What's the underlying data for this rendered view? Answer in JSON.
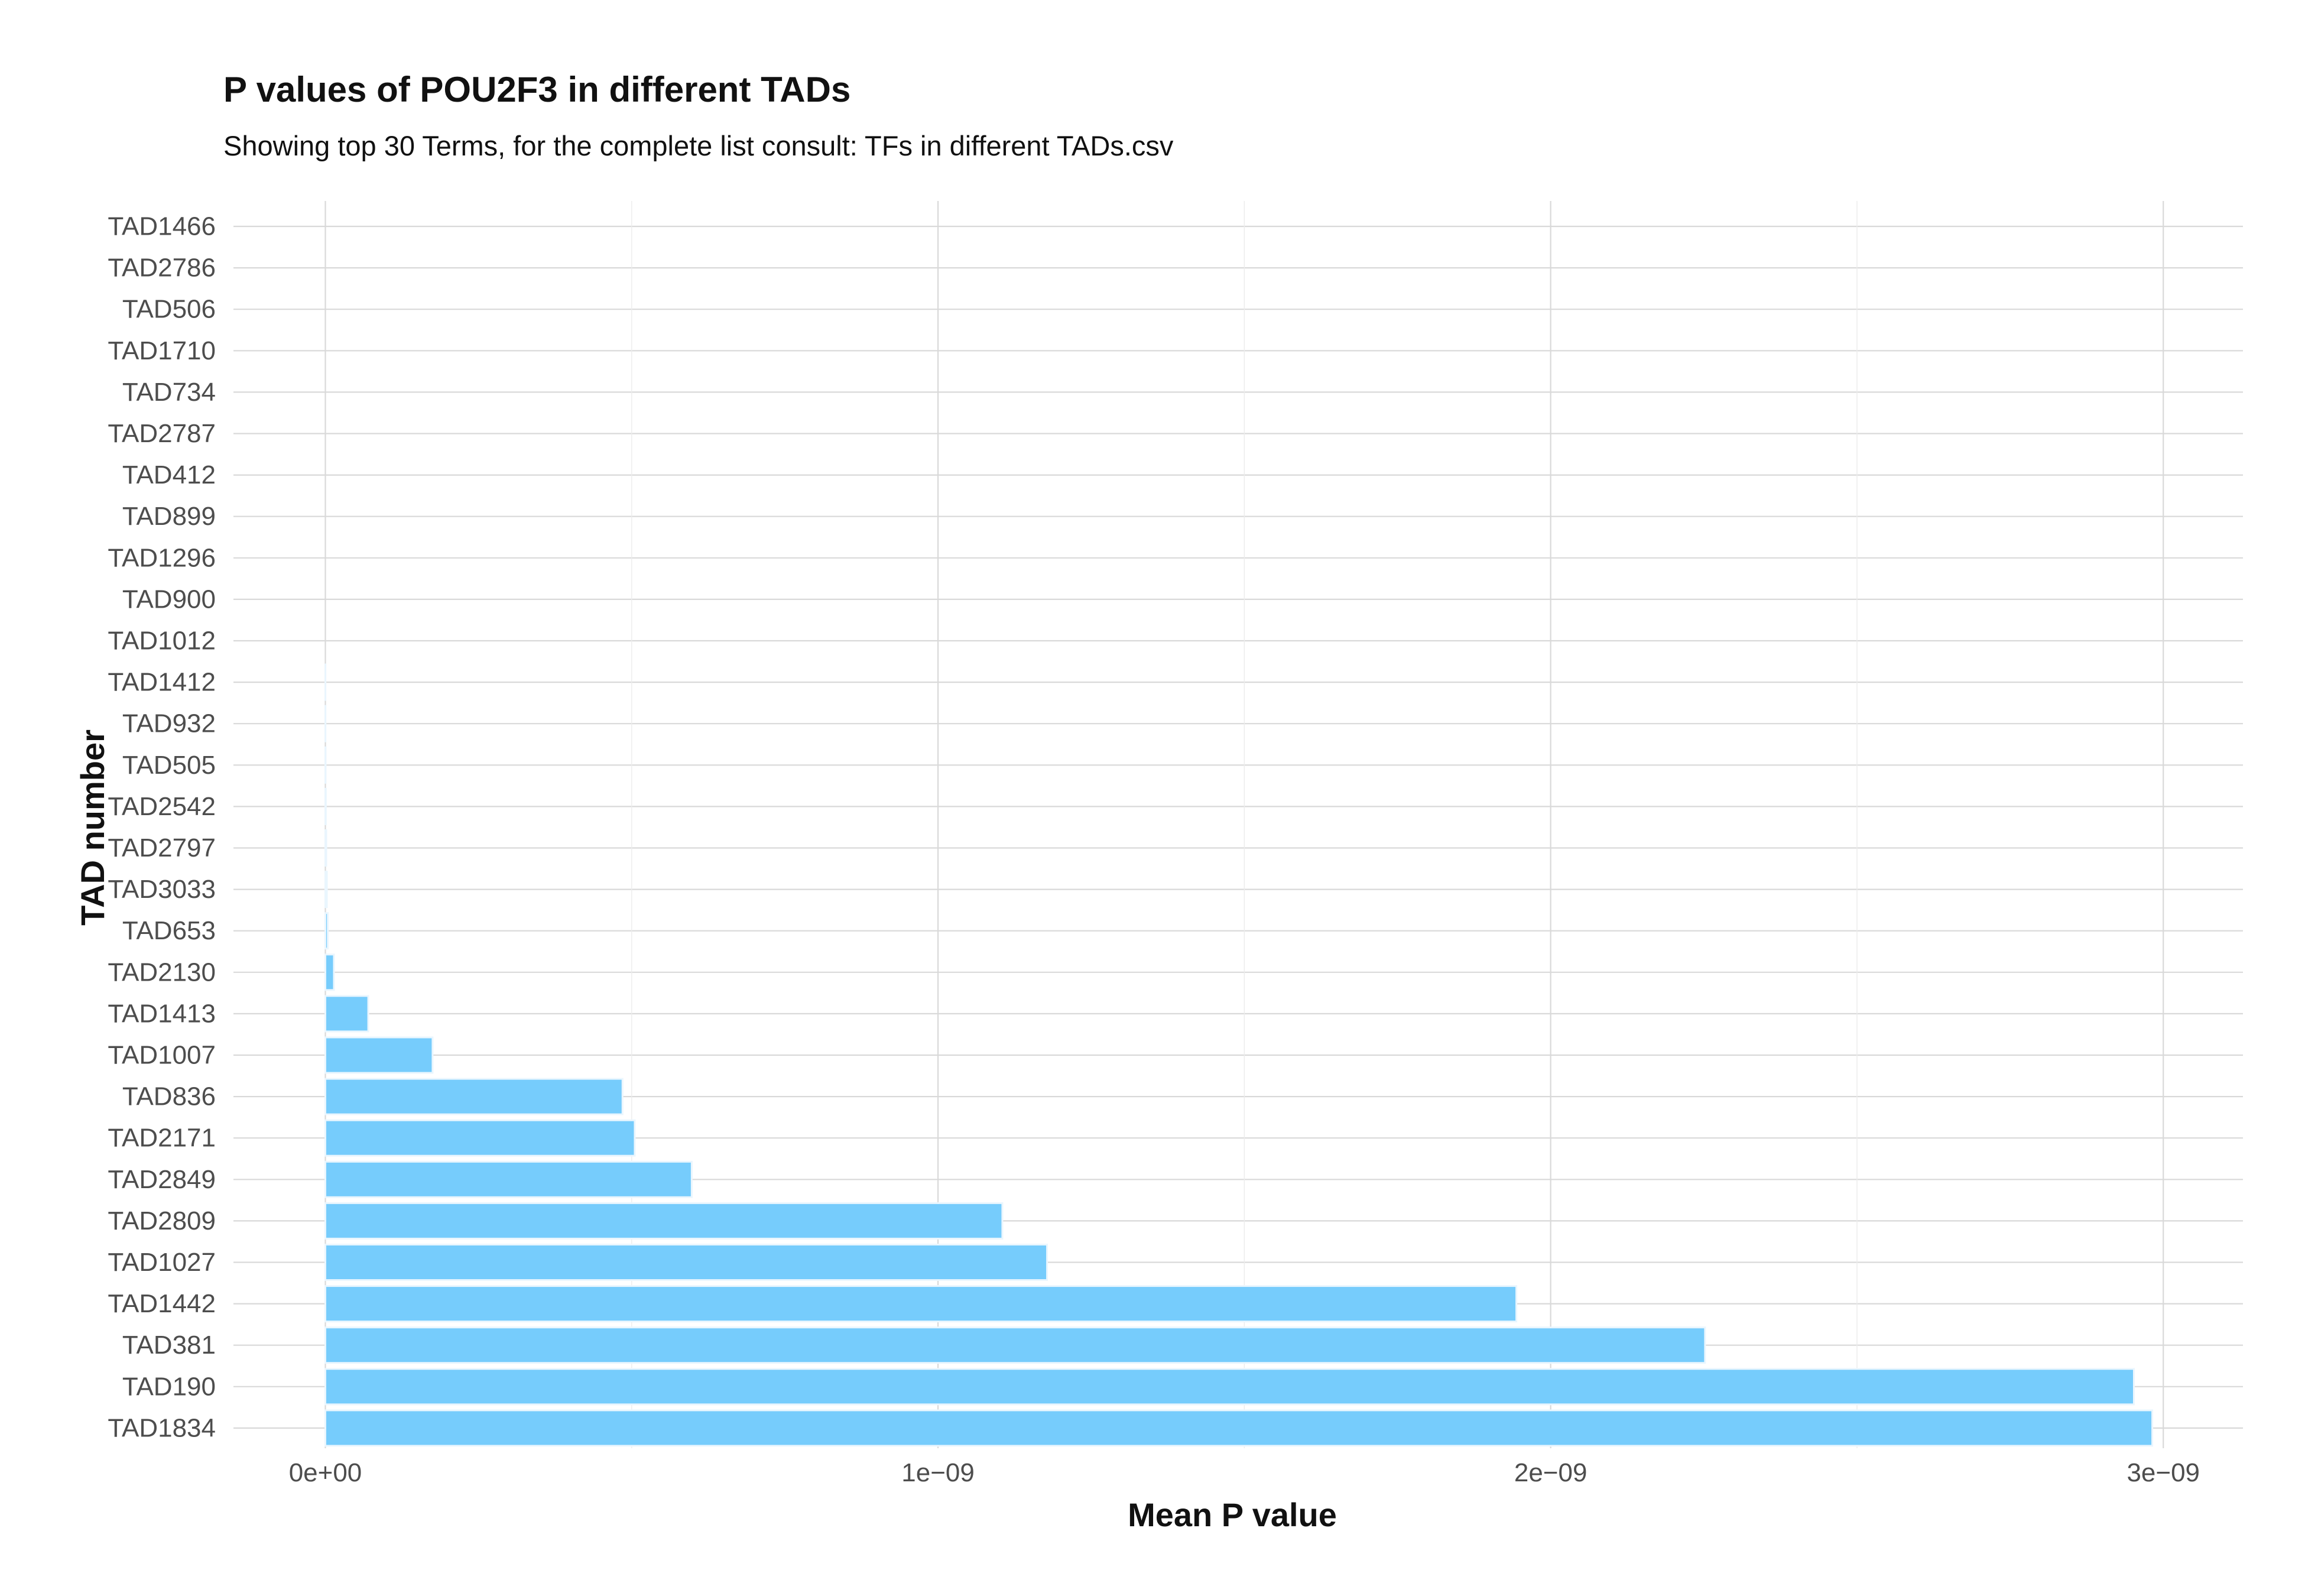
{
  "chart_data": {
    "type": "bar",
    "orientation": "horizontal",
    "title": "P values of POU2F3 in different TADs",
    "subtitle": "Showing top 30 Terms, for the complete list consult: TFs in different TADs.csv",
    "xlabel": "Mean P value",
    "ylabel": "TAD number",
    "xlim": [
      -1.5e-10,
      3.13e-09
    ],
    "x_ticks": [
      0,
      1e-09,
      2e-09,
      3e-09
    ],
    "x_tick_labels": [
      "0e+00",
      "1e−09",
      "2e−09",
      "3e−09"
    ],
    "grid": true,
    "bar_color": "#76ccfc",
    "categories": [
      "TAD1466",
      "TAD2786",
      "TAD506",
      "TAD1710",
      "TAD734",
      "TAD2787",
      "TAD412",
      "TAD899",
      "TAD1296",
      "TAD900",
      "TAD1012",
      "TAD1412",
      "TAD932",
      "TAD505",
      "TAD2542",
      "TAD2797",
      "TAD3033",
      "TAD653",
      "TAD2130",
      "TAD1413",
      "TAD1007",
      "TAD836",
      "TAD2171",
      "TAD2849",
      "TAD2809",
      "TAD1027",
      "TAD1442",
      "TAD381",
      "TAD190",
      "TAD1834"
    ],
    "values": [
      0,
      0,
      0,
      0,
      0,
      0,
      0,
      0,
      0,
      0,
      0,
      1e-13,
      2e-13,
      4e-13,
      8e-13,
      1.5e-12,
      2.5e-12,
      4e-12,
      1.4e-11,
      7e-11,
      1.75e-10,
      4.85e-10,
      5.05e-10,
      5.98e-10,
      1.105e-09,
      1.178e-09,
      1.944e-09,
      2.252e-09,
      2.952e-09,
      2.982e-09
    ]
  }
}
